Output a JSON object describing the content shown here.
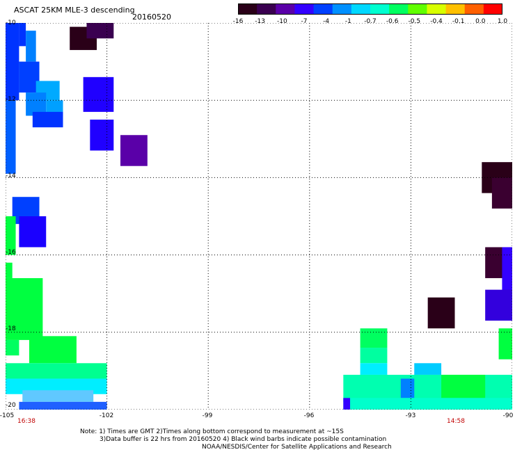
{
  "header": {
    "title": "ASCAT 25KM MLE-3 descending",
    "date": "20160520"
  },
  "colorbar": {
    "labels": [
      "-16",
      "-13",
      "-10",
      "-7",
      "-4",
      "-1",
      "-0.7",
      "-0.6",
      "-0.5",
      "-0.4",
      "-0.1",
      "0.0",
      "1.0"
    ],
    "colors": [
      "#2a0018",
      "#3a0050",
      "#5a00a8",
      "#3300ff",
      "#0040ff",
      "#0090ff",
      "#00d8ff",
      "#00ffd0",
      "#00ff60",
      "#60ff00",
      "#d8ff00",
      "#ffc000",
      "#ff6000",
      "#ff0000"
    ]
  },
  "axes": {
    "lat_labels": [
      "-10",
      "-12",
      "-14",
      "-16",
      "-18",
      "-20"
    ],
    "lon_labels": [
      "-105",
      "-102",
      "-99",
      "-96",
      "-93",
      "-90"
    ],
    "time_labels": [
      {
        "text": "16:38",
        "lon": -104.5
      },
      {
        "text": "14:58",
        "lon": -91.4
      }
    ]
  },
  "notes": {
    "line1": "Note: 1) Times are GMT 2)Times along bottom correspond to measurement at ~15S",
    "line2": "3)Data buffer is 22 hrs from 20160520 4) Black wind barbs indicate possible contamination",
    "line3": "NOAA/NESDIS/Center for Satellite Applications and Research"
  },
  "map_data": {
    "type": "gridded-swath",
    "lon_range": [
      -105,
      -90
    ],
    "lat_range": [
      -20,
      -10
    ],
    "cells": [
      {
        "lon0": -105.0,
        "lon1": -104.6,
        "lat0": -10.0,
        "lat1": -12.0,
        "color": "#0033ff"
      },
      {
        "lon0": -104.6,
        "lon1": -104.4,
        "lat0": -10.0,
        "lat1": -10.6,
        "color": "#0033ff"
      },
      {
        "lon0": -104.4,
        "lon1": -104.1,
        "lat0": -10.2,
        "lat1": -11.0,
        "color": "#0080ff"
      },
      {
        "lon0": -104.6,
        "lon1": -104.0,
        "lat0": -11.0,
        "lat1": -11.8,
        "color": "#0040ff"
      },
      {
        "lon0": -104.1,
        "lon1": -103.4,
        "lat0": -11.5,
        "lat1": -12.0,
        "color": "#00aaff"
      },
      {
        "lon0": -104.4,
        "lon1": -103.8,
        "lat0": -11.8,
        "lat1": -12.4,
        "color": "#0080ff"
      },
      {
        "lon0": -103.8,
        "lon1": -103.3,
        "lat0": -12.0,
        "lat1": -12.4,
        "color": "#00a0ff"
      },
      {
        "lon0": -104.2,
        "lon1": -103.3,
        "lat0": -12.3,
        "lat1": -12.7,
        "color": "#0033ff"
      },
      {
        "lon0": -105.0,
        "lon1": -104.7,
        "lat0": -12.0,
        "lat1": -13.9,
        "color": "#0060ff"
      },
      {
        "lon0": -103.1,
        "lon1": -102.3,
        "lat0": -10.1,
        "lat1": -10.7,
        "color": "#2a0018"
      },
      {
        "lon0": -102.6,
        "lon1": -101.8,
        "lat0": -10.0,
        "lat1": -10.4,
        "color": "#3a0050"
      },
      {
        "lon0": -102.7,
        "lon1": -101.8,
        "lat0": -11.4,
        "lat1": -12.3,
        "color": "#2000ff"
      },
      {
        "lon0": -102.5,
        "lon1": -101.8,
        "lat0": -12.5,
        "lat1": -13.3,
        "color": "#2000ff"
      },
      {
        "lon0": -101.6,
        "lon1": -100.8,
        "lat0": -12.9,
        "lat1": -13.7,
        "color": "#5a00a8"
      },
      {
        "lon0": -104.8,
        "lon1": -104.0,
        "lat0": -14.5,
        "lat1": -15.2,
        "color": "#0040ff"
      },
      {
        "lon0": -104.6,
        "lon1": -103.8,
        "lat0": -15.0,
        "lat1": -15.8,
        "color": "#1a00ff"
      },
      {
        "lon0": -105.0,
        "lon1": -104.7,
        "lat0": -15.0,
        "lat1": -16.0,
        "color": "#00ff40"
      },
      {
        "lon0": -105.0,
        "lon1": -104.8,
        "lat0": -16.2,
        "lat1": -16.6,
        "color": "#00ff40"
      },
      {
        "lon0": -105.0,
        "lon1": -103.9,
        "lat0": -16.6,
        "lat1": -18.2,
        "color": "#00ff40"
      },
      {
        "lon0": -104.3,
        "lon1": -102.9,
        "lat0": -18.1,
        "lat1": -18.8,
        "color": "#00ff40"
      },
      {
        "lon0": -105.0,
        "lon1": -104.6,
        "lat0": -18.2,
        "lat1": -18.6,
        "color": "#00ff60"
      },
      {
        "lon0": -105.0,
        "lon1": -102.0,
        "lat0": -18.8,
        "lat1": -19.2,
        "color": "#00ff90"
      },
      {
        "lon0": -105.0,
        "lon1": -102.0,
        "lat0": -19.2,
        "lat1": -19.6,
        "color": "#00eeff"
      },
      {
        "lon0": -104.5,
        "lon1": -102.4,
        "lat0": -19.5,
        "lat1": -19.8,
        "color": "#60c8ff"
      },
      {
        "lon0": -104.6,
        "lon1": -102.0,
        "lat0": -19.8,
        "lat1": -20.0,
        "color": "#2060ff"
      },
      {
        "lon0": -90.9,
        "lon1": -90.0,
        "lat0": -13.6,
        "lat1": -14.4,
        "color": "#2a0018"
      },
      {
        "lon0": -90.6,
        "lon1": -89.9,
        "lat0": -14.0,
        "lat1": -14.8,
        "color": "#3a0030"
      },
      {
        "lon0": -90.8,
        "lon1": -89.9,
        "lat0": -15.8,
        "lat1": -16.6,
        "color": "#3a0030"
      },
      {
        "lon0": -90.3,
        "lon1": -90.0,
        "lat0": -15.8,
        "lat1": -17.1,
        "color": "#3300ff"
      },
      {
        "lon0": -90.8,
        "lon1": -89.9,
        "lat0": -16.9,
        "lat1": -17.7,
        "color": "#3300dd"
      },
      {
        "lon0": -92.5,
        "lon1": -91.7,
        "lat0": -17.1,
        "lat1": -17.9,
        "color": "#2a0018"
      },
      {
        "lon0": -90.4,
        "lon1": -89.9,
        "lat0": -17.9,
        "lat1": -18.7,
        "color": "#00ff40"
      },
      {
        "lon0": -94.5,
        "lon1": -93.7,
        "lat0": -17.9,
        "lat1": -18.4,
        "color": "#00ff60"
      },
      {
        "lon0": -94.5,
        "lon1": -93.7,
        "lat0": -18.4,
        "lat1": -18.8,
        "color": "#00ffa0"
      },
      {
        "lon0": -94.5,
        "lon1": -93.7,
        "lat0": -18.8,
        "lat1": -19.1,
        "color": "#00eeff"
      },
      {
        "lon0": -92.9,
        "lon1": -92.1,
        "lat0": -18.8,
        "lat1": -19.1,
        "color": "#00ccff"
      },
      {
        "lon0": -95.0,
        "lon1": -90.0,
        "lat0": -19.1,
        "lat1": -19.8,
        "color": "#00ffb0"
      },
      {
        "lon0": -92.1,
        "lon1": -90.8,
        "lat0": -19.1,
        "lat1": -19.7,
        "color": "#00ff40"
      },
      {
        "lon0": -93.3,
        "lon1": -92.9,
        "lat0": -19.2,
        "lat1": -19.7,
        "color": "#0080ff"
      },
      {
        "lon0": -95.0,
        "lon1": -90.0,
        "lat0": -19.7,
        "lat1": -20.0,
        "color": "#00ffcc"
      },
      {
        "lon0": -95.0,
        "lon1": -94.8,
        "lat0": -19.7,
        "lat1": -20.0,
        "color": "#3300ff"
      }
    ]
  }
}
